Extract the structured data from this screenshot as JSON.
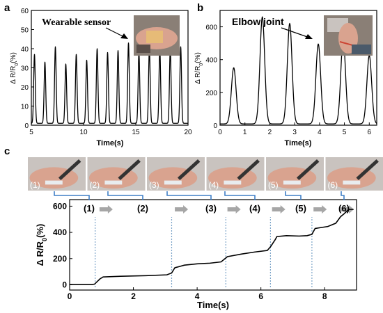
{
  "panels": [
    {
      "id": "a",
      "letter": "a",
      "annotation": "Wearable sensor",
      "chart_data": {
        "type": "line",
        "xlabel": "Time(s)",
        "ylabel": "Δ R/R0(%)",
        "xlim": [
          5,
          20
        ],
        "ylim": [
          0,
          60
        ],
        "xticks": [
          5,
          10,
          15,
          20
        ],
        "yticks": [
          0,
          10,
          20,
          30,
          40,
          50,
          60
        ],
        "grid": false,
        "peaks": [
          {
            "x": 5.3,
            "y": 37
          },
          {
            "x": 6.3,
            "y": 33
          },
          {
            "x": 7.3,
            "y": 41
          },
          {
            "x": 8.3,
            "y": 32
          },
          {
            "x": 9.3,
            "y": 37
          },
          {
            "x": 10.3,
            "y": 34
          },
          {
            "x": 11.3,
            "y": 40
          },
          {
            "x": 12.3,
            "y": 38
          },
          {
            "x": 13.3,
            "y": 39
          },
          {
            "x": 14.3,
            "y": 43
          },
          {
            "x": 15.3,
            "y": 38
          },
          {
            "x": 16.3,
            "y": 40
          },
          {
            "x": 17.3,
            "y": 40
          },
          {
            "x": 18.3,
            "y": 40
          },
          {
            "x": 19.3,
            "y": 41
          }
        ],
        "baseline": 1,
        "peak_width": 0.16
      }
    },
    {
      "id": "b",
      "letter": "b",
      "annotation": "Elbow joint",
      "chart_data": {
        "type": "line",
        "xlabel": "Time(s)",
        "ylabel": "Δ R/R0(%)",
        "xlim": [
          0,
          6.3
        ],
        "ylim": [
          0,
          700
        ],
        "xticks": [
          0,
          1,
          2,
          3,
          4,
          5,
          6
        ],
        "yticks": [
          0,
          200,
          400,
          600
        ],
        "grid": false,
        "peaks": [
          {
            "x": 0.55,
            "y": 350
          },
          {
            "x": 1.7,
            "y": 660
          },
          {
            "x": 2.8,
            "y": 620
          },
          {
            "x": 3.95,
            "y": 495
          },
          {
            "x": 4.95,
            "y": 525
          },
          {
            "x": 6.0,
            "y": 425
          }
        ],
        "baseline": 8,
        "peak_width": 0.2
      }
    },
    {
      "id": "c",
      "letter": "c",
      "chart_data": {
        "type": "line",
        "xlabel": "Time(s)",
        "ylabel": "Δ R/R0(%)",
        "xlim": [
          0,
          9
        ],
        "ylim": [
          -40,
          650
        ],
        "xticks": [
          0,
          2,
          4,
          6,
          8
        ],
        "yticks": [
          0,
          200,
          400,
          600
        ],
        "grid": false,
        "points": [
          [
            0,
            2
          ],
          [
            0.7,
            2
          ],
          [
            0.78,
            5
          ],
          [
            0.95,
            45
          ],
          [
            1.05,
            60
          ],
          [
            1.6,
            65
          ],
          [
            2.4,
            70
          ],
          [
            3.05,
            76
          ],
          [
            3.2,
            90
          ],
          [
            3.3,
            130
          ],
          [
            3.6,
            150
          ],
          [
            4.0,
            160
          ],
          [
            4.4,
            165
          ],
          [
            4.75,
            175
          ],
          [
            4.85,
            195
          ],
          [
            4.95,
            215
          ],
          [
            5.4,
            235
          ],
          [
            5.8,
            250
          ],
          [
            6.2,
            262
          ],
          [
            6.3,
            290
          ],
          [
            6.45,
            345
          ],
          [
            6.5,
            368
          ],
          [
            6.8,
            375
          ],
          [
            7.2,
            372
          ],
          [
            7.45,
            375
          ],
          [
            7.6,
            385
          ],
          [
            7.7,
            430
          ],
          [
            8.1,
            445
          ],
          [
            8.35,
            470
          ],
          [
            8.5,
            520
          ],
          [
            8.6,
            540
          ],
          [
            8.75,
            575
          ],
          [
            8.9,
            575
          ]
        ],
        "step_labels": [
          "(1)",
          "(2)",
          "(3)",
          "(4)",
          "(5)",
          "(6)"
        ],
        "step_markers": [
          {
            "x": 0.8,
            "label_index": 0
          },
          {
            "x": 3.2,
            "label_index": 2
          },
          {
            "x": 4.9,
            "label_index": 3
          },
          {
            "x": 6.3,
            "label_index": 3
          },
          {
            "x": 7.6,
            "label_index": 4
          }
        ]
      },
      "photo_labels": [
        "(1)",
        "(2)",
        "(3)",
        "(4)",
        "(5)",
        "(6)"
      ]
    }
  ],
  "colors": {
    "line": "#000000",
    "connector": "#3f7fc6",
    "marker_dotted": "#7aa3c8",
    "arrow": "#a6a6a6",
    "photo_skin": "#d9a38f",
    "photo_bg": "#c9c3bf",
    "inset_bg": "#8a7f76"
  }
}
